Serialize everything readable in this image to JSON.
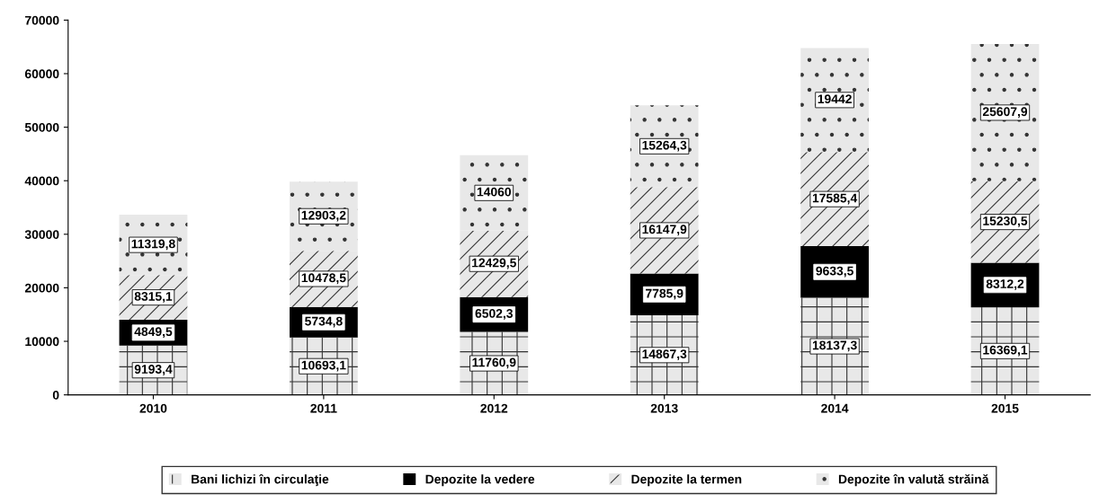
{
  "chart_data": {
    "type": "bar",
    "stacked": true,
    "categories": [
      "2010",
      "2011",
      "2012",
      "2013",
      "2014",
      "2015"
    ],
    "series": [
      {
        "name": "Bani lichizi în circulaţie",
        "color": "#e8e8e8",
        "values": [
          9193.4,
          10693.1,
          11760.9,
          14867.3,
          18137.3,
          16369.1
        ],
        "value_labels": [
          "9193,4",
          "10693,1",
          "11760,9",
          "14867,3",
          "18137,3",
          "16369,1"
        ]
      },
      {
        "name": "Depozite la vedere",
        "color": "#000000",
        "values": [
          4849.5,
          5734.8,
          6502.3,
          7785.9,
          9633.5,
          8312.2
        ],
        "value_labels": [
          "4849,5",
          "5734,8",
          "6502,3",
          "7785,9",
          "9633,5",
          "8312,2"
        ]
      },
      {
        "name": "Depozite la termen",
        "color": "#e8e8e8",
        "values": [
          8315.1,
          10478.5,
          12429.5,
          16147.9,
          17585.4,
          15230.5
        ],
        "value_labels": [
          "8315,1",
          "10478,5",
          "12429,5",
          "16147,9",
          "17585,4",
          "15230,5"
        ]
      },
      {
        "name": "Depozite în valută străină",
        "color": "#e8e8e8",
        "values": [
          11319.8,
          12903.2,
          14060,
          15264.3,
          19442,
          25607.9
        ],
        "value_labels": [
          "11319,8",
          "12903,2",
          "14060",
          "15264,3",
          "19442",
          "25607,9"
        ]
      }
    ],
    "ylim": [
      0,
      70000
    ],
    "yticks": [
      0,
      10000,
      20000,
      30000,
      40000,
      50000,
      60000,
      70000
    ],
    "grid": false,
    "legend": "bottom"
  }
}
